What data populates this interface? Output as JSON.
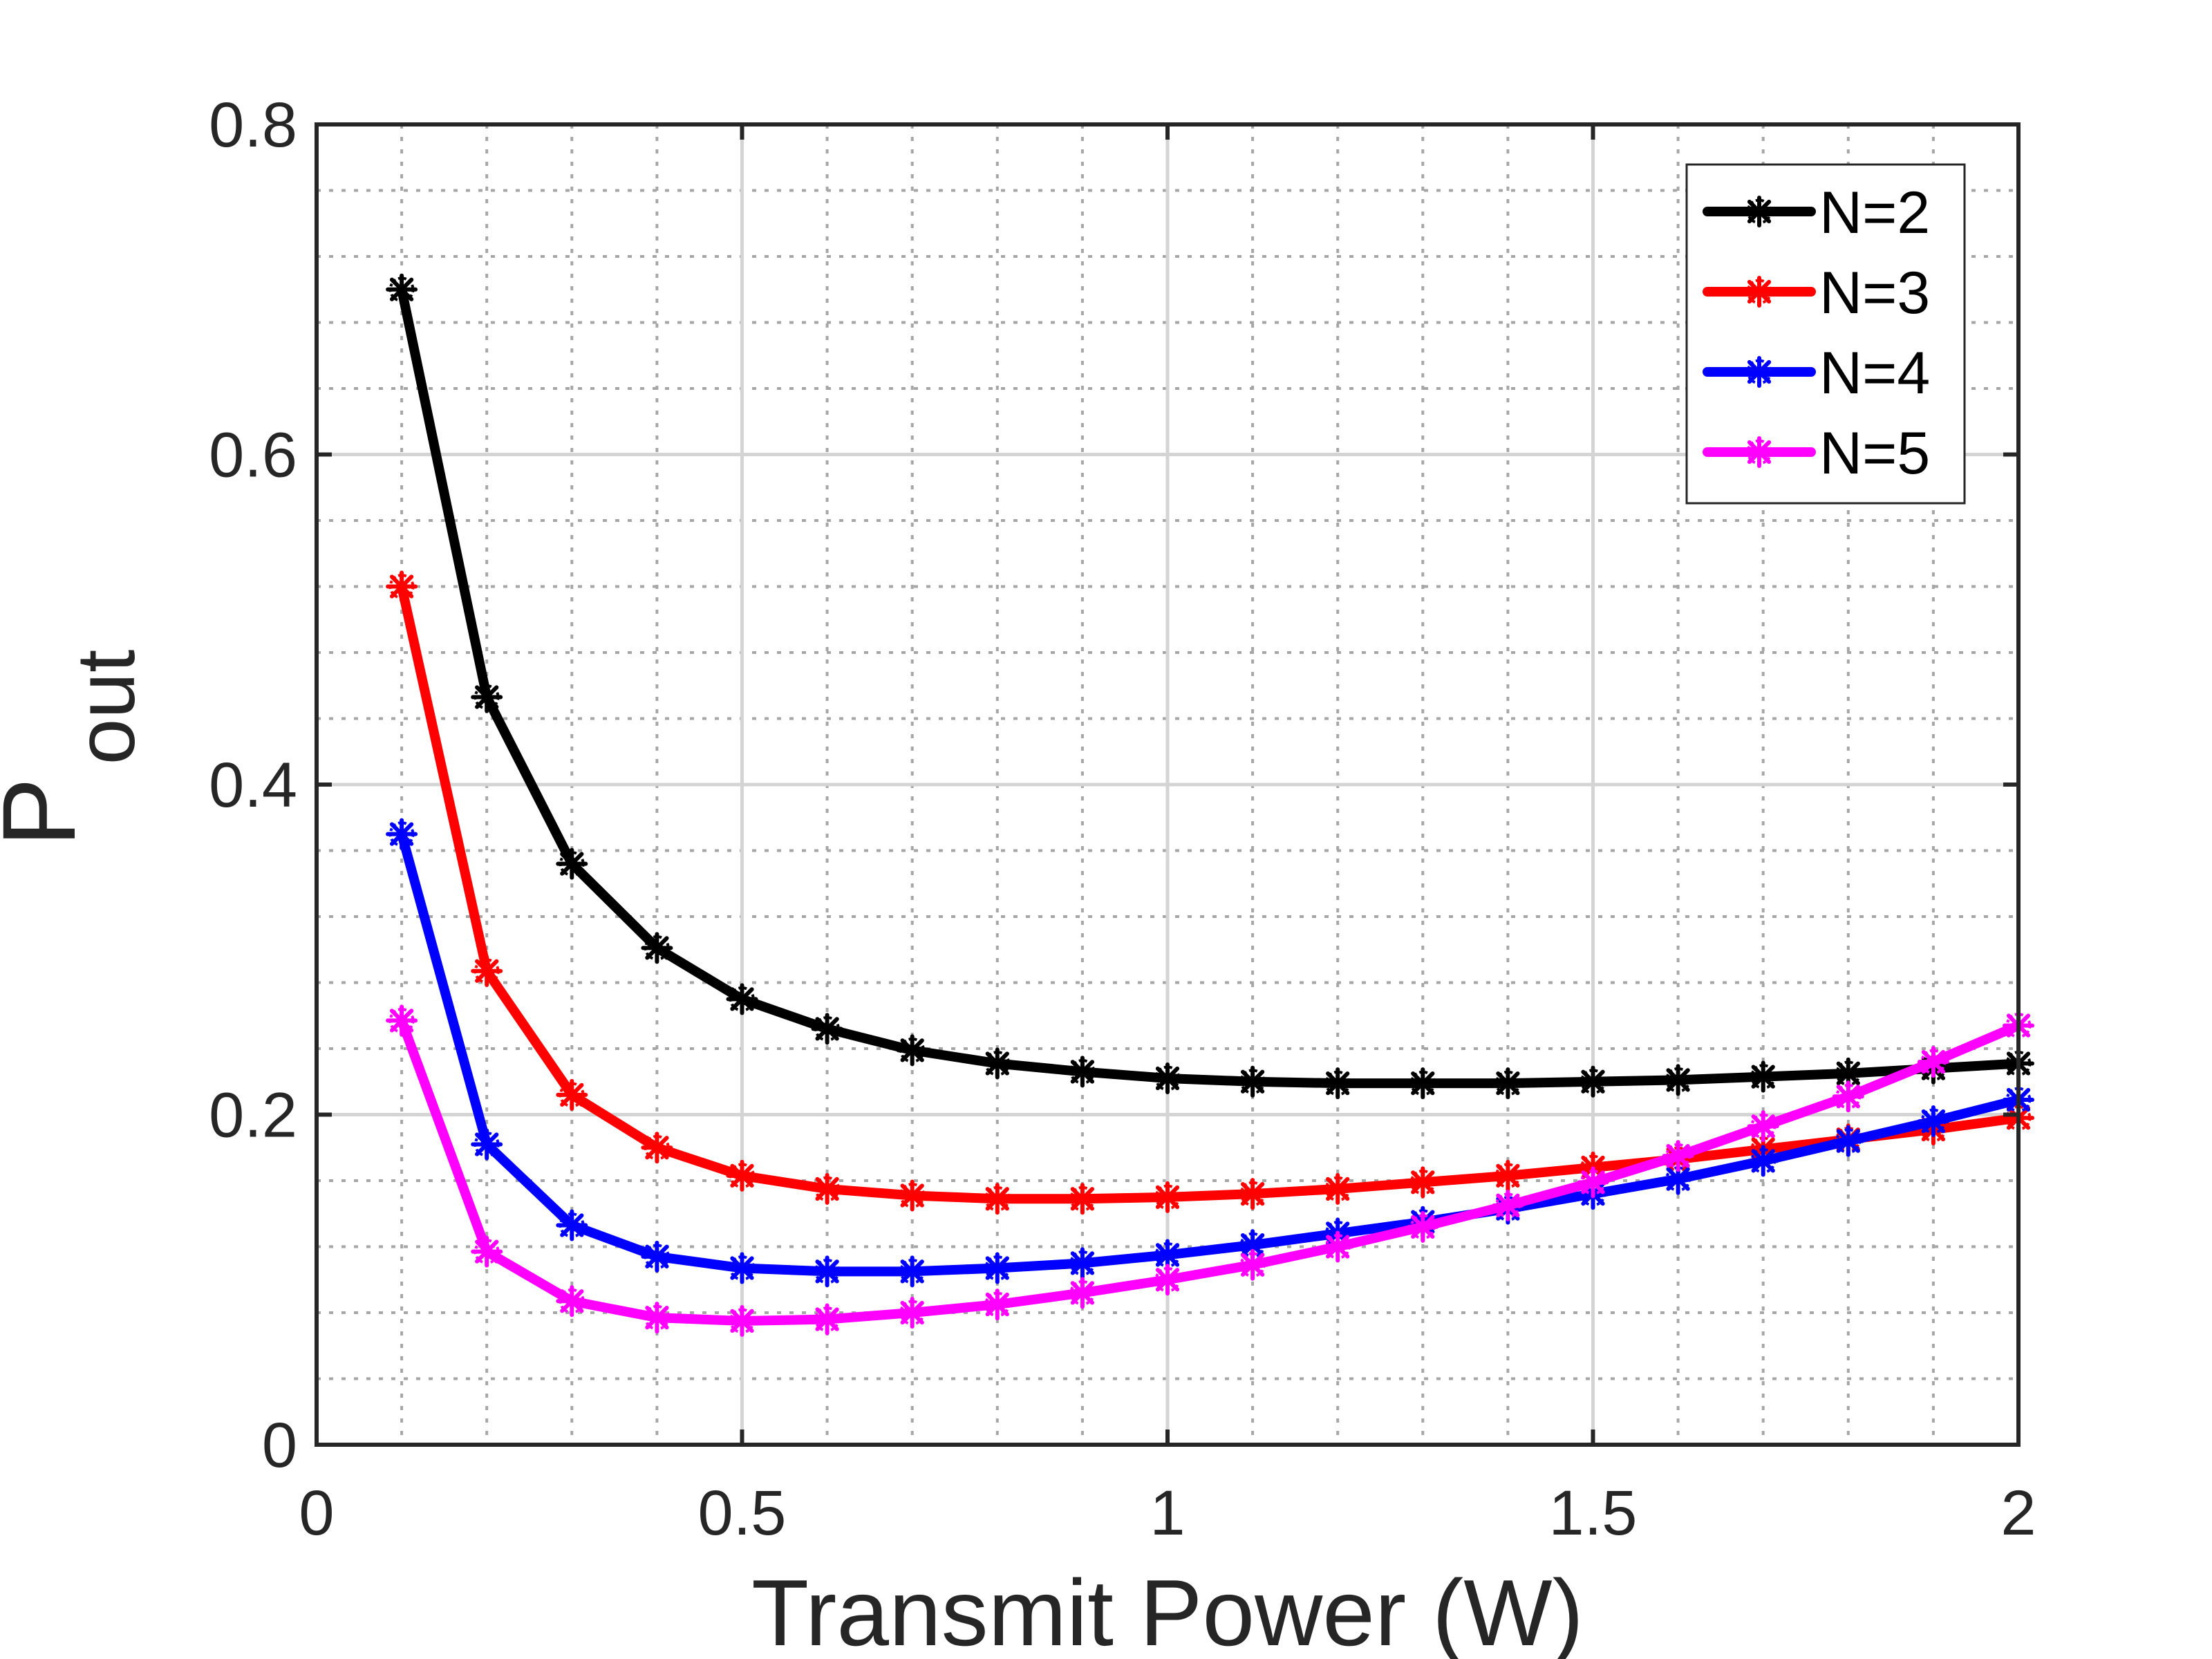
{
  "chart_data": {
    "type": "line",
    "title": "",
    "xlabel": "Transmit Power (W)",
    "ylabel": "P",
    "ylabel_subscript": "out",
    "xlim": [
      0,
      2
    ],
    "ylim": [
      0,
      0.8
    ],
    "xticks": [
      0,
      0.5,
      1,
      1.5,
      2
    ],
    "xtick_labels": [
      "0",
      "0.5",
      "1",
      "1.5",
      "2"
    ],
    "yticks": [
      0,
      0.2,
      0.4,
      0.6,
      0.8
    ],
    "ytick_labels": [
      "0",
      "0.2",
      "0.4",
      "0.6",
      "0.8"
    ],
    "minor_x_step": 0.1,
    "minor_y_step": 0.04,
    "grid": true,
    "legend_position": "top-right",
    "marker": "asterisk",
    "x": [
      0.1,
      0.2,
      0.3,
      0.4,
      0.5,
      0.6,
      0.7,
      0.8,
      0.9,
      1.0,
      1.1,
      1.2,
      1.3,
      1.4,
      1.5,
      1.6,
      1.7,
      1.8,
      1.9,
      2.0
    ],
    "series": [
      {
        "name": "N=2",
        "color": "#000000",
        "values": [
          0.7,
          0.453,
          0.352,
          0.301,
          0.27,
          0.252,
          0.239,
          0.231,
          0.226,
          0.222,
          0.22,
          0.219,
          0.219,
          0.219,
          0.22,
          0.221,
          0.223,
          0.225,
          0.228,
          0.231
        ]
      },
      {
        "name": "N=3",
        "color": "#ff0000",
        "values": [
          0.52,
          0.287,
          0.212,
          0.18,
          0.163,
          0.155,
          0.151,
          0.149,
          0.149,
          0.15,
          0.152,
          0.155,
          0.159,
          0.163,
          0.168,
          0.173,
          0.179,
          0.185,
          0.191,
          0.198
        ]
      },
      {
        "name": "N=4",
        "color": "#0000ff",
        "values": [
          0.37,
          0.182,
          0.133,
          0.114,
          0.107,
          0.105,
          0.105,
          0.107,
          0.11,
          0.115,
          0.121,
          0.128,
          0.135,
          0.143,
          0.152,
          0.161,
          0.172,
          0.184,
          0.196,
          0.209
        ]
      },
      {
        "name": "N=5",
        "color": "#ff00ff",
        "values": [
          0.257,
          0.117,
          0.087,
          0.077,
          0.075,
          0.076,
          0.08,
          0.085,
          0.092,
          0.1,
          0.109,
          0.12,
          0.132,
          0.145,
          0.159,
          0.175,
          0.193,
          0.211,
          0.232,
          0.254
        ]
      }
    ]
  }
}
